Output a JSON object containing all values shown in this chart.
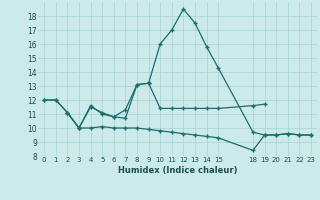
{
  "title": "",
  "xlabel": "Humidex (Indice chaleur)",
  "bg_color": "#cceaea",
  "line_color": "#1a6e6e",
  "grid_color": "#a8d4d4",
  "ylim": [
    8,
    19
  ],
  "xlim": [
    -0.5,
    23.5
  ],
  "yticks": [
    8,
    9,
    10,
    11,
    12,
    13,
    14,
    15,
    16,
    17,
    18
  ],
  "xtick_positions": [
    0,
    1,
    2,
    3,
    4,
    5,
    6,
    7,
    8,
    9,
    10,
    11,
    12,
    13,
    14,
    15,
    18,
    19,
    20,
    21,
    22,
    23
  ],
  "xtick_labels": [
    "0",
    "1",
    "2",
    "3",
    "4",
    "5",
    "6",
    "7",
    "8",
    "9",
    "10",
    "11",
    "12",
    "13",
    "14",
    "15",
    "18",
    "19",
    "20",
    "21",
    "22",
    "23"
  ],
  "series1_x": [
    0,
    1,
    2,
    3,
    4,
    5,
    6,
    7,
    8,
    9,
    10,
    11,
    12,
    13,
    14,
    15,
    18,
    19,
    20,
    21,
    22,
    23
  ],
  "series1_y": [
    12.0,
    12.0,
    11.1,
    10.0,
    11.6,
    11.0,
    10.8,
    11.3,
    13.1,
    13.2,
    16.0,
    17.0,
    18.5,
    17.5,
    15.8,
    14.3,
    9.7,
    9.5,
    9.5,
    9.6,
    9.5,
    9.5
  ],
  "series2_x": [
    2,
    3,
    4,
    5,
    6,
    7,
    8,
    9,
    10,
    11,
    12,
    13,
    14,
    15,
    18,
    19
  ],
  "series2_y": [
    11.1,
    10.0,
    11.5,
    11.1,
    10.8,
    10.7,
    13.1,
    13.2,
    11.4,
    11.4,
    11.4,
    11.4,
    11.4,
    11.4,
    11.6,
    11.7
  ],
  "series3_x": [
    0,
    1,
    2,
    3,
    4,
    5,
    6,
    7,
    8,
    9,
    10,
    11,
    12,
    13,
    14,
    15,
    18,
    19,
    20,
    21,
    22,
    23
  ],
  "series3_y": [
    12.0,
    12.0,
    11.1,
    10.0,
    10.0,
    10.1,
    10.0,
    10.0,
    10.0,
    9.9,
    9.8,
    9.7,
    9.6,
    9.5,
    9.4,
    9.3,
    8.4,
    9.5,
    9.5,
    9.6,
    9.5,
    9.5
  ]
}
